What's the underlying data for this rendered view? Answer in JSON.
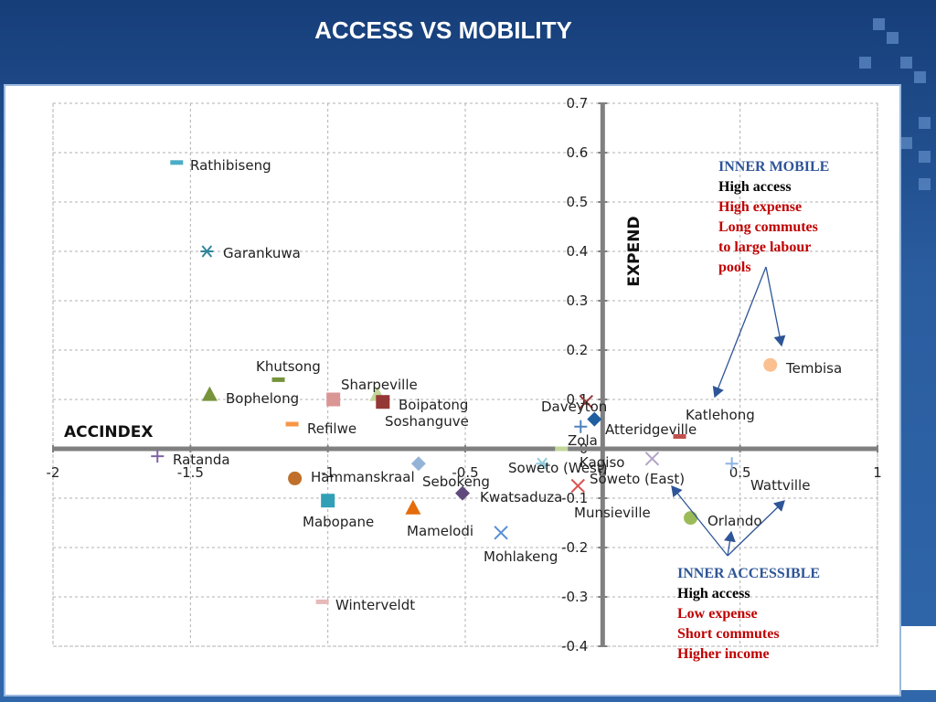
{
  "slide": {
    "title": "ACCESS VS MOBILITY"
  },
  "chart_data": {
    "type": "scatter",
    "title": "",
    "xlabel": "ACCINDEX",
    "ylabel": "EXPEND",
    "xlim": [
      -2,
      1
    ],
    "ylim": [
      -0.4,
      0.7
    ],
    "x_ticks": [
      "-2",
      "-1.5",
      "-1",
      "-0.5",
      "0",
      "0.5",
      "1"
    ],
    "y_ticks": [
      "-0.4",
      "-0.3",
      "-0.2",
      "-0.1",
      "0",
      "0.1",
      "0.2",
      "0.3",
      "0.4",
      "0.5",
      "0.6",
      "0.7"
    ],
    "grid": true,
    "points": [
      {
        "label": "Rathibiseng",
        "x": -1.55,
        "y": 0.58,
        "marker": "dash",
        "color": "#4bacc6"
      },
      {
        "label": "Garankuwa",
        "x": -1.44,
        "y": 0.4,
        "marker": "star",
        "color": "#31859c"
      },
      {
        "label": "Khutsong",
        "x": -1.18,
        "y": 0.14,
        "marker": "dash",
        "color": "#77933c"
      },
      {
        "label": "Bophelong",
        "x": -1.43,
        "y": 0.11,
        "marker": "triangle",
        "color": "#77933c"
      },
      {
        "label": "Sharpeville",
        "x": -0.98,
        "y": 0.1,
        "marker": "square",
        "color": "#d99694"
      },
      {
        "label": "Soshanguve",
        "x": -0.82,
        "y": 0.11,
        "marker": "triangle",
        "color": "#c3d69b"
      },
      {
        "label": "Boipatong",
        "x": -0.8,
        "y": 0.095,
        "marker": "square",
        "color": "#953735"
      },
      {
        "label": "Refilwe",
        "x": -1.13,
        "y": 0.05,
        "marker": "dash",
        "color": "#f79646"
      },
      {
        "label": "Ratanda",
        "x": -1.62,
        "y": -0.015,
        "marker": "plus",
        "color": "#8064a2"
      },
      {
        "label": "Hammanskraal",
        "x": -1.12,
        "y": -0.06,
        "marker": "circle",
        "color": "#c0702a"
      },
      {
        "label": "Sebokeng",
        "x": -0.67,
        "y": -0.03,
        "marker": "diamond",
        "color": "#95b3d7"
      },
      {
        "label": "Kwatsaduza",
        "x": -0.51,
        "y": -0.09,
        "marker": "diamond",
        "color": "#604a7b"
      },
      {
        "label": "Mabopane",
        "x": -1.0,
        "y": -0.105,
        "marker": "square",
        "color": "#31a0b7"
      },
      {
        "label": "Mamelodi",
        "x": -0.69,
        "y": -0.12,
        "marker": "triangle",
        "color": "#e46c0a"
      },
      {
        "label": "Mohlakeng",
        "x": -0.37,
        "y": -0.17,
        "marker": "x",
        "color": "#558ed5"
      },
      {
        "label": "Winterveldt",
        "x": -1.02,
        "y": -0.31,
        "marker": "dash",
        "color": "#e6b9b8"
      },
      {
        "label": "Daveyton",
        "x": -0.06,
        "y": 0.095,
        "marker": "x",
        "color": "#953735"
      },
      {
        "label": "Atteridgeville",
        "x": -0.03,
        "y": 0.06,
        "marker": "diamond",
        "color": "#1f5fa0"
      },
      {
        "label": "Zola",
        "x": -0.08,
        "y": 0.045,
        "marker": "plus",
        "color": "#4f81bd"
      },
      {
        "label": "Kagiso",
        "x": -0.15,
        "y": 0.0,
        "marker": "dash",
        "color": "#c3d69b"
      },
      {
        "label": "Soweto (West)",
        "x": -0.22,
        "y": -0.03,
        "marker": "star",
        "color": "#93cddd"
      },
      {
        "label": "Soweto (East)",
        "x": 0.18,
        "y": -0.02,
        "marker": "x",
        "color": "#b3a2c7"
      },
      {
        "label": "Munsieville",
        "x": -0.09,
        "y": -0.075,
        "marker": "x",
        "color": "#d9534f"
      },
      {
        "label": "Katlehong",
        "x": 0.28,
        "y": 0.025,
        "marker": "dash",
        "color": "#c0504d"
      },
      {
        "label": "Tembisa",
        "x": 0.61,
        "y": 0.17,
        "marker": "circle",
        "color": "#fac090"
      },
      {
        "label": "Orlando",
        "x": 0.32,
        "y": -0.14,
        "marker": "circle",
        "color": "#9bbb59"
      },
      {
        "label": "Wattville",
        "x": 0.47,
        "y": -0.03,
        "marker": "plus",
        "color": "#8eb4e3"
      }
    ],
    "annotations": [
      {
        "title": "INNER MOBILE",
        "lines": [
          "High access",
          "High expense",
          "Long commutes",
          "to large labour",
          "pools"
        ]
      },
      {
        "title": "INNER ACCESSIBLE",
        "lines": [
          "High access",
          "Low expense",
          "Short commutes",
          "Higher income"
        ]
      }
    ],
    "colors": {
      "axis": "#808080",
      "grid": "#b0b0b0",
      "note_title": "#2e5597",
      "note_black": "#000000",
      "note_red": "#c00000",
      "arrow": "#2e5597"
    }
  }
}
